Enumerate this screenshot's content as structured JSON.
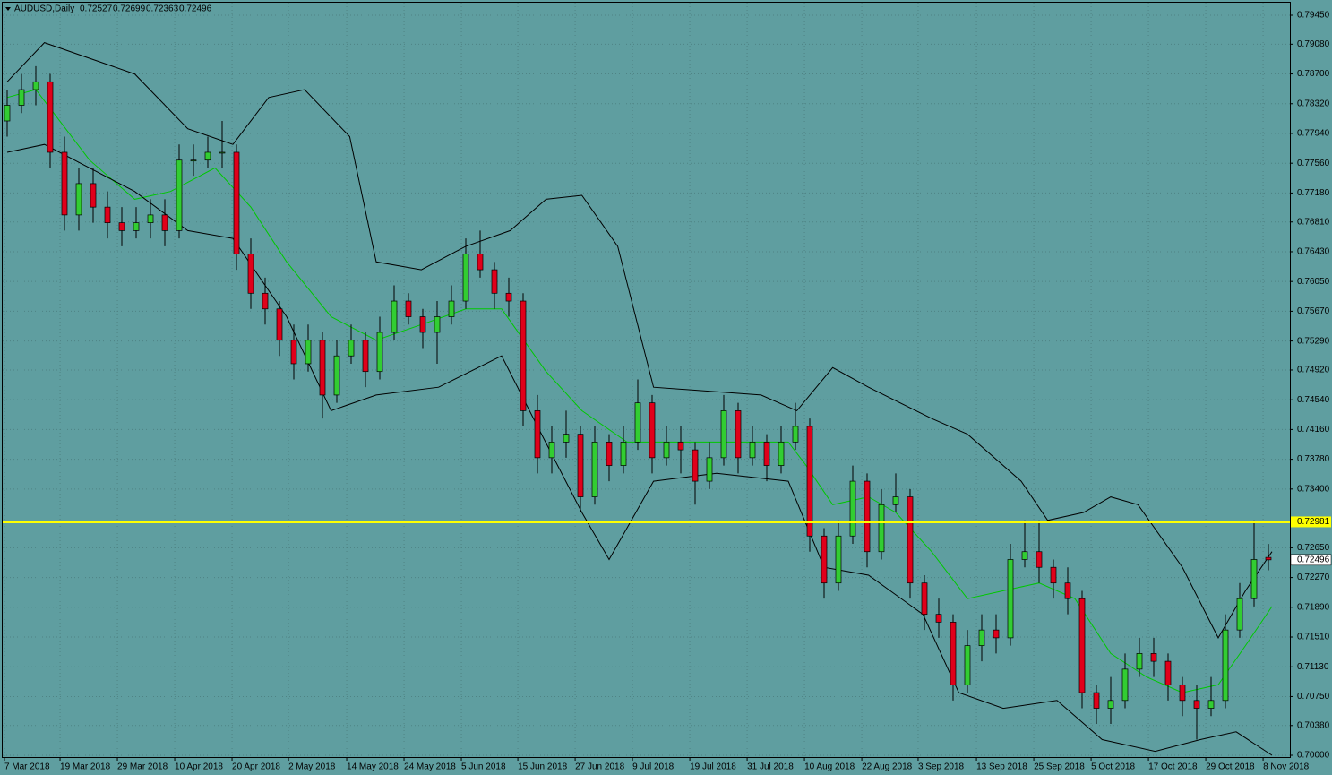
{
  "chart_data": {
    "type": "candlestick",
    "title": "AUDUSD,Daily",
    "background": "#5f9ea0",
    "grid": true,
    "up_color": "#32cd32",
    "down_color": "#e0001a",
    "xlim": [
      -0.3125,
      89.5
    ],
    "ylim": [
      0.7,
      0.7945
    ],
    "yticks": [
      {
        "value": 0.7945,
        "label": "0.79450"
      },
      {
        "value": 0.7908,
        "label": "0.79080"
      },
      {
        "value": 0.787,
        "label": "0.78700"
      },
      {
        "value": 0.7832,
        "label": "0.78320"
      },
      {
        "value": 0.7794,
        "label": "0.77940"
      },
      {
        "value": 0.7756,
        "label": "0.77560"
      },
      {
        "value": 0.7718,
        "label": "0.77180"
      },
      {
        "value": 0.7681,
        "label": "0.76810"
      },
      {
        "value": 0.7643,
        "label": "0.76430"
      },
      {
        "value": 0.7605,
        "label": "0.76050"
      },
      {
        "value": 0.7567,
        "label": "0.75670"
      },
      {
        "value": 0.7529,
        "label": "0.75290"
      },
      {
        "value": 0.7492,
        "label": "0.74920"
      },
      {
        "value": 0.7454,
        "label": "0.74540"
      },
      {
        "value": 0.7416,
        "label": "0.74160"
      },
      {
        "value": 0.7378,
        "label": "0.73780"
      },
      {
        "value": 0.734,
        "label": "0.73400"
      },
      {
        "value": 0.7265,
        "label": "0.72650"
      },
      {
        "value": 0.7227,
        "label": "0.72270"
      },
      {
        "value": 0.7189,
        "label": "0.71890"
      },
      {
        "value": 0.7151,
        "label": "0.71510"
      },
      {
        "value": 0.7113,
        "label": "0.71130"
      },
      {
        "value": 0.7075,
        "label": "0.70750"
      },
      {
        "value": 0.7038,
        "label": "0.70380"
      },
      {
        "value": 0.7,
        "label": "0.70000"
      }
    ],
    "xticks": [
      {
        "value": -0.19,
        "label": "7 Mar 2018"
      },
      {
        "value": 3.69,
        "label": "19 Mar 2018"
      },
      {
        "value": 7.69,
        "label": "29 Mar 2018"
      },
      {
        "value": 11.69,
        "label": "10 Apr 2018"
      },
      {
        "value": 15.69,
        "label": "20 Apr 2018"
      },
      {
        "value": 19.63,
        "label": "2 May 2018"
      },
      {
        "value": 23.69,
        "label": "14 May 2018"
      },
      {
        "value": 27.69,
        "label": "24 May 2018"
      },
      {
        "value": 31.69,
        "label": "5 Jun 2018"
      },
      {
        "value": 35.63,
        "label": "15 Jun 2018"
      },
      {
        "value": 39.63,
        "label": "27 Jun 2018"
      },
      {
        "value": 43.63,
        "label": "9 Jul 2018"
      },
      {
        "value": 47.63,
        "label": "19 Jul 2018"
      },
      {
        "value": 51.63,
        "label": "31 Jul 2018"
      },
      {
        "value": 55.63,
        "label": "10 Aug 2018"
      },
      {
        "value": 59.63,
        "label": "22 Aug 2018"
      },
      {
        "value": 63.56,
        "label": "3 Sep 2018"
      },
      {
        "value": 67.63,
        "label": "13 Sep 2018"
      },
      {
        "value": 71.63,
        "label": "25 Sep 2018"
      },
      {
        "value": 75.63,
        "label": "5 Oct 2018"
      },
      {
        "value": 79.63,
        "label": "17 Oct 2018"
      },
      {
        "value": 83.63,
        "label": "29 Oct 2018"
      },
      {
        "value": 87.63,
        "label": "8 Nov 2018"
      }
    ],
    "candles": [
      [
        0.781,
        0.785,
        0.779,
        0.783
      ],
      [
        0.783,
        0.787,
        0.782,
        0.785
      ],
      [
        0.785,
        0.788,
        0.783,
        0.786
      ],
      [
        0.786,
        0.787,
        0.775,
        0.777
      ],
      [
        0.777,
        0.779,
        0.767,
        0.769
      ],
      [
        0.769,
        0.775,
        0.767,
        0.773
      ],
      [
        0.773,
        0.775,
        0.768,
        0.77
      ],
      [
        0.77,
        0.772,
        0.766,
        0.768
      ],
      [
        0.768,
        0.77,
        0.765,
        0.767
      ],
      [
        0.767,
        0.77,
        0.766,
        0.768
      ],
      [
        0.768,
        0.771,
        0.766,
        0.769
      ],
      [
        0.769,
        0.771,
        0.765,
        0.767
      ],
      [
        0.767,
        0.778,
        0.766,
        0.776
      ],
      [
        0.776,
        0.778,
        0.774,
        0.776
      ],
      [
        0.776,
        0.779,
        0.775,
        0.777
      ],
      [
        0.777,
        0.781,
        0.775,
        0.777
      ],
      [
        0.777,
        0.778,
        0.762,
        0.764
      ],
      [
        0.764,
        0.766,
        0.757,
        0.759
      ],
      [
        0.759,
        0.761,
        0.755,
        0.757
      ],
      [
        0.757,
        0.758,
        0.751,
        0.753
      ],
      [
        0.753,
        0.755,
        0.748,
        0.75
      ],
      [
        0.75,
        0.755,
        0.749,
        0.753
      ],
      [
        0.753,
        0.754,
        0.743,
        0.746
      ],
      [
        0.746,
        0.753,
        0.745,
        0.751
      ],
      [
        0.751,
        0.755,
        0.75,
        0.753
      ],
      [
        0.753,
        0.754,
        0.747,
        0.749
      ],
      [
        0.749,
        0.756,
        0.748,
        0.754
      ],
      [
        0.754,
        0.76,
        0.753,
        0.758
      ],
      [
        0.758,
        0.759,
        0.755,
        0.756
      ],
      [
        0.756,
        0.757,
        0.752,
        0.754
      ],
      [
        0.754,
        0.758,
        0.75,
        0.756
      ],
      [
        0.756,
        0.76,
        0.755,
        0.758
      ],
      [
        0.758,
        0.766,
        0.757,
        0.764
      ],
      [
        0.764,
        0.767,
        0.761,
        0.762
      ],
      [
        0.762,
        0.763,
        0.757,
        0.759
      ],
      [
        0.759,
        0.761,
        0.756,
        0.758
      ],
      [
        0.758,
        0.759,
        0.742,
        0.744
      ],
      [
        0.744,
        0.746,
        0.736,
        0.738
      ],
      [
        0.738,
        0.742,
        0.736,
        0.74
      ],
      [
        0.74,
        0.744,
        0.738,
        0.741
      ],
      [
        0.741,
        0.742,
        0.731,
        0.733
      ],
      [
        0.733,
        0.742,
        0.732,
        0.74
      ],
      [
        0.74,
        0.741,
        0.735,
        0.737
      ],
      [
        0.737,
        0.742,
        0.736,
        0.74
      ],
      [
        0.74,
        0.748,
        0.739,
        0.745
      ],
      [
        0.745,
        0.746,
        0.736,
        0.738
      ],
      [
        0.738,
        0.742,
        0.737,
        0.74
      ],
      [
        0.74,
        0.742,
        0.736,
        0.739
      ],
      [
        0.739,
        0.74,
        0.732,
        0.735
      ],
      [
        0.735,
        0.74,
        0.734,
        0.738
      ],
      [
        0.738,
        0.746,
        0.737,
        0.744
      ],
      [
        0.744,
        0.745,
        0.736,
        0.738
      ],
      [
        0.738,
        0.742,
        0.737,
        0.74
      ],
      [
        0.74,
        0.741,
        0.735,
        0.737
      ],
      [
        0.737,
        0.742,
        0.736,
        0.74
      ],
      [
        0.74,
        0.745,
        0.739,
        0.742
      ],
      [
        0.742,
        0.743,
        0.726,
        0.728
      ],
      [
        0.728,
        0.729,
        0.72,
        0.722
      ],
      [
        0.722,
        0.73,
        0.721,
        0.728
      ],
      [
        0.728,
        0.737,
        0.727,
        0.735
      ],
      [
        0.735,
        0.736,
        0.724,
        0.726
      ],
      [
        0.726,
        0.734,
        0.725,
        0.732
      ],
      [
        0.732,
        0.736,
        0.731,
        0.733
      ],
      [
        0.733,
        0.734,
        0.72,
        0.722
      ],
      [
        0.722,
        0.723,
        0.716,
        0.718
      ],
      [
        0.718,
        0.72,
        0.715,
        0.717
      ],
      [
        0.717,
        0.718,
        0.707,
        0.709
      ],
      [
        0.709,
        0.716,
        0.708,
        0.714
      ],
      [
        0.714,
        0.718,
        0.712,
        0.716
      ],
      [
        0.716,
        0.718,
        0.713,
        0.715
      ],
      [
        0.715,
        0.727,
        0.714,
        0.725
      ],
      [
        0.725,
        0.73,
        0.724,
        0.726
      ],
      [
        0.726,
        0.73,
        0.722,
        0.724
      ],
      [
        0.724,
        0.725,
        0.72,
        0.722
      ],
      [
        0.722,
        0.724,
        0.718,
        0.72
      ],
      [
        0.72,
        0.721,
        0.706,
        0.708
      ],
      [
        0.708,
        0.709,
        0.704,
        0.706
      ],
      [
        0.706,
        0.71,
        0.704,
        0.707
      ],
      [
        0.707,
        0.713,
        0.706,
        0.711
      ],
      [
        0.711,
        0.715,
        0.71,
        0.713
      ],
      [
        0.713,
        0.715,
        0.71,
        0.712
      ],
      [
        0.712,
        0.713,
        0.707,
        0.709
      ],
      [
        0.709,
        0.71,
        0.705,
        0.707
      ],
      [
        0.707,
        0.709,
        0.702,
        0.706
      ],
      [
        0.706,
        0.71,
        0.705,
        0.707
      ],
      [
        0.707,
        0.718,
        0.706,
        0.716
      ],
      [
        0.716,
        0.722,
        0.715,
        0.72
      ],
      [
        0.72,
        0.73,
        0.719,
        0.725
      ],
      [
        0.72527,
        0.72699,
        0.72363,
        0.72496
      ]
    ],
    "lines": [
      {
        "color": "#00c800",
        "x": [
          0,
          2,
          5.75,
          8.9,
          11.4,
          14.5,
          17,
          19.5,
          22.6,
          25.75,
          28.9,
          32,
          34.5,
          37.6,
          40.1,
          43.25,
          47,
          50.75,
          54.5,
          55.75,
          57.6,
          60.1,
          62,
          64.5,
          67,
          69.5,
          72,
          74.5,
          77,
          79.5,
          82,
          84.5,
          86.4,
          88.25
        ],
        "values": [
          0.784,
          0.785,
          0.776,
          0.771,
          0.772,
          0.775,
          0.77,
          0.763,
          0.756,
          0.753,
          0.755,
          0.757,
          0.757,
          0.749,
          0.744,
          0.74,
          0.74,
          0.74,
          0.74,
          0.737,
          0.732,
          0.733,
          0.731,
          0.726,
          0.72,
          0.721,
          0.722,
          0.72,
          0.713,
          0.71,
          0.708,
          0.709,
          0.714,
          0.719
        ]
      },
      {
        "color": "#000000",
        "x": [
          0,
          2.6,
          8.9,
          12.6,
          15.75,
          18.25,
          20.75,
          23.9,
          25.75,
          28.9,
          32,
          35.1,
          37.6,
          40.1,
          42.6,
          45.1,
          52.6,
          55.1,
          57.6,
          60.1,
          64.5,
          67,
          70.75,
          72.6,
          75.1,
          77,
          78.9,
          82,
          84.5,
          86.4,
          88.25
        ],
        "values": [
          0.786,
          0.791,
          0.787,
          0.78,
          0.778,
          0.784,
          0.785,
          0.779,
          0.763,
          0.762,
          0.765,
          0.767,
          0.771,
          0.7715,
          0.765,
          0.747,
          0.746,
          0.744,
          0.7495,
          0.747,
          0.743,
          0.741,
          0.735,
          0.73,
          0.731,
          0.733,
          0.732,
          0.724,
          0.715,
          0.721,
          0.726
        ]
      },
      {
        "color": "#000000",
        "x": [
          0,
          2.6,
          8.9,
          12.6,
          15.75,
          19.5,
          22.6,
          25.75,
          30.1,
          34.5,
          37,
          40.1,
          42,
          45.1,
          49.5,
          54.5,
          57,
          60.1,
          63.9,
          66.4,
          69.5,
          73.25,
          76.4,
          80.1,
          83.25,
          85.75,
          88.25
        ],
        "values": [
          0.777,
          0.778,
          0.772,
          0.767,
          0.766,
          0.756,
          0.744,
          0.746,
          0.747,
          0.751,
          0.742,
          0.731,
          0.725,
          0.735,
          0.736,
          0.735,
          0.724,
          0.723,
          0.718,
          0.708,
          0.706,
          0.707,
          0.702,
          0.7005,
          0.702,
          0.703,
          0.7
        ]
      }
    ],
    "hline": {
      "value": 0.72981,
      "color": "#ffff00"
    }
  }
}
